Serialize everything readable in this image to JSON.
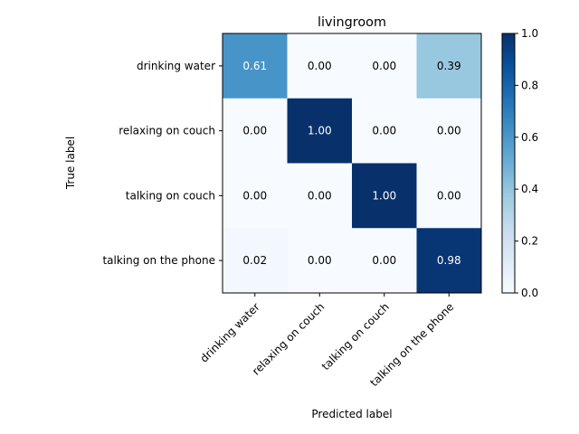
{
  "chart_data": {
    "type": "heatmap",
    "title": "livingroom",
    "xlabel": "Predicted label",
    "ylabel": "True label",
    "x_categories": [
      "drinking water",
      "relaxing on couch",
      "talking on couch",
      "talking on the phone"
    ],
    "y_categories": [
      "drinking water",
      "relaxing on couch",
      "talking on couch",
      "talking on the phone"
    ],
    "values": [
      [
        0.61,
        0.0,
        0.0,
        0.39
      ],
      [
        0.0,
        1.0,
        0.0,
        0.0
      ],
      [
        0.0,
        0.0,
        1.0,
        0.0
      ],
      [
        0.02,
        0.0,
        0.0,
        0.98
      ]
    ],
    "value_labels": [
      [
        "0.61",
        "0.00",
        "0.00",
        "0.39"
      ],
      [
        "0.00",
        "1.00",
        "0.00",
        "0.00"
      ],
      [
        "0.00",
        "0.00",
        "1.00",
        "0.00"
      ],
      [
        "0.02",
        "0.00",
        "0.00",
        "0.98"
      ]
    ],
    "colormap": "Blues",
    "colorbar": {
      "range": [
        0.0,
        1.0
      ],
      "ticks": [
        0.0,
        0.2,
        0.4,
        0.6,
        0.8,
        1.0
      ],
      "tick_labels": [
        "0.0",
        "0.2",
        "0.4",
        "0.6",
        "0.8",
        "1.0"
      ]
    },
    "grid": false
  }
}
